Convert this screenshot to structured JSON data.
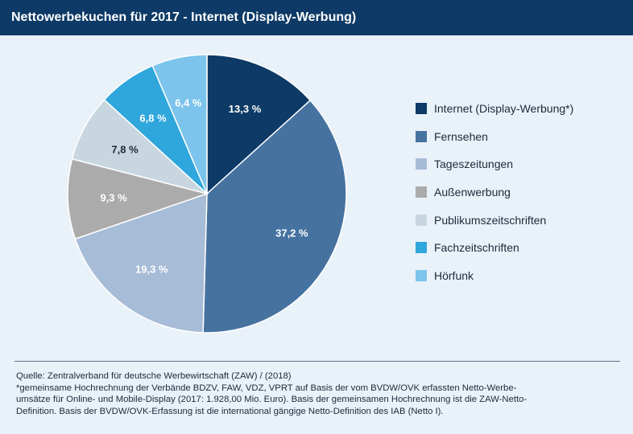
{
  "header": {
    "title": "Nettowerbekuchen für 2017 - Internet (Display-Werbung)"
  },
  "chart_data": {
    "type": "pie",
    "title": "Nettowerbekuchen für 2017 - Internet (Display-Werbung)",
    "legend_position": "right",
    "slices": [
      {
        "name": "Internet (Display-Werbung*)",
        "value": 13.3,
        "label": "13,3 %",
        "color": "#0d3a66",
        "label_color": "#ffffff"
      },
      {
        "name": "Fernsehen",
        "value": 37.2,
        "label": "37,2 %",
        "color": "#4672a0",
        "label_color": "#ffffff"
      },
      {
        "name": "Tageszeitungen",
        "value": 19.3,
        "label": "19,3 %",
        "color": "#a7bcd7",
        "label_color": "#ffffff"
      },
      {
        "name": "Außenwerbung",
        "value": 9.3,
        "label": "9,3 %",
        "color": "#ababab",
        "label_color": "#ffffff"
      },
      {
        "name": "Publikumszeitschriften",
        "value": 7.8,
        "label": "7,8 %",
        "color": "#c8d7df",
        "label_color": "#1d2a3a"
      },
      {
        "name": "Fachzeitschriften",
        "value": 6.8,
        "label": "6,8 %",
        "color": "#2fa6dc",
        "label_color": "#ffffff"
      },
      {
        "name": "Hörfunk",
        "value": 6.4,
        "label": "6,4 %",
        "color": "#7cc4eb",
        "label_color": "#ffffff"
      }
    ]
  },
  "footer": {
    "source": "Quelle: Zentralverband für deutsche Werbewirtschaft (ZAW) / (2018)",
    "note_line1": "*gemeinsame Hochrechnung der Verbände BDZV, FAW, VDZ, VPRT auf Basis der vom BVDW/OVK erfassten Netto-Werbe-",
    "note_line2": "umsätze für Online- und Mobile-Display (2017: 1.928,00 Mio. Euro). Basis der gemeinsamen Hochrechnung ist die ZAW-Netto-",
    "note_line3": "Definition. Basis der BVDW/OVK-Erfassung ist die international gängige Netto-Definition des IAB (Netto I)."
  }
}
